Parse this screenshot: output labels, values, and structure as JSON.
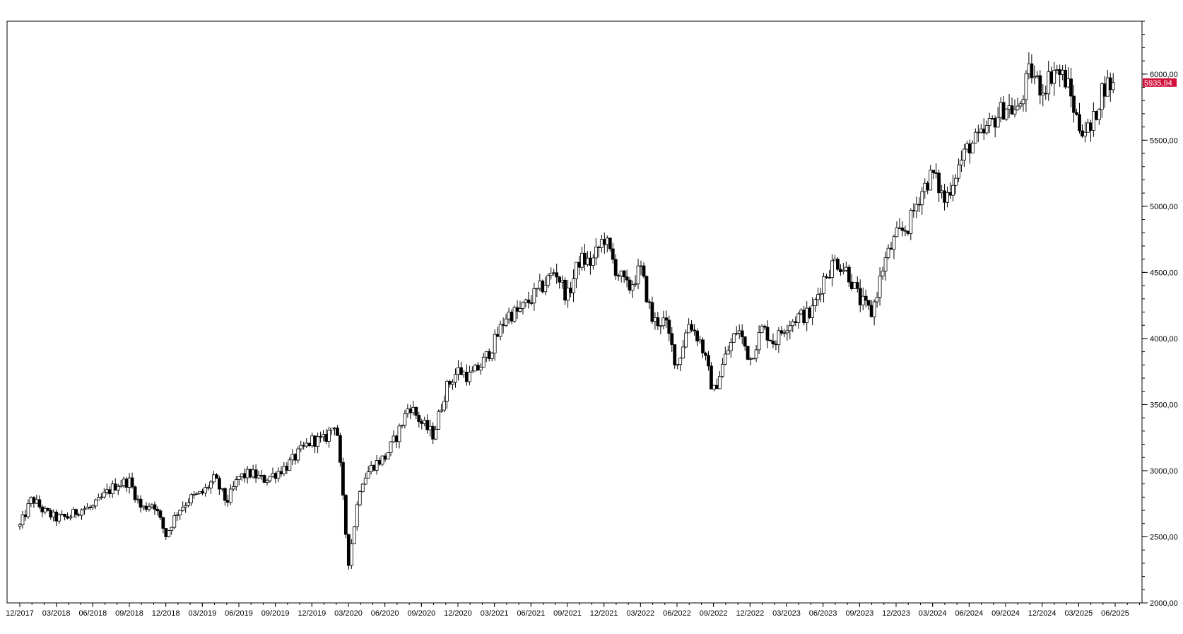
{
  "chart_data": {
    "type": "candlestick",
    "title": "",
    "xlabel": "",
    "ylabel": "",
    "ylim": [
      2000,
      6400
    ],
    "y_ticks": [
      "2000,00",
      "2500,00",
      "3000,00",
      "3500,00",
      "4000,00",
      "4500,00",
      "5000,00",
      "5500,00",
      "6000,00"
    ],
    "x_ticks": [
      "12/2017",
      "03/2018",
      "06/2018",
      "09/2018",
      "12/2018",
      "03/2019",
      "06/2019",
      "09/2019",
      "12/2019",
      "03/2020",
      "06/2020",
      "09/2020",
      "12/2020",
      "03/2021",
      "06/2021",
      "09/2021",
      "12/2021",
      "03/2022",
      "06/2022",
      "09/2022",
      "12/2022",
      "03/2023",
      "06/2023",
      "09/2023",
      "12/2023",
      "03/2024",
      "06/2024",
      "09/2024",
      "12/2024",
      "03/2025",
      "06/2025"
    ],
    "last_price": 5935.94,
    "last_price_label": "5935,94",
    "colors": {
      "up": "#ffffff",
      "down": "#000000",
      "outline": "#000000",
      "last_price_badge": "#d0103a"
    },
    "grid": false,
    "series": [
      {
        "name": "",
        "approx_close_path": [
          [
            "12/2017",
            2580
          ],
          [
            "01/2018",
            2790
          ],
          [
            "02/2018",
            2690
          ],
          [
            "03/2018",
            2640
          ],
          [
            "04/2018",
            2650
          ],
          [
            "05/2018",
            2710
          ],
          [
            "06/2018",
            2720
          ],
          [
            "07/2018",
            2820
          ],
          [
            "08/2018",
            2900
          ],
          [
            "09/2018",
            2920
          ],
          [
            "10/2018",
            2710
          ],
          [
            "11/2018",
            2760
          ],
          [
            "12/2018",
            2510
          ],
          [
            "01/2019",
            2700
          ],
          [
            "02/2019",
            2790
          ],
          [
            "03/2019",
            2830
          ],
          [
            "04/2019",
            2940
          ],
          [
            "05/2019",
            2760
          ],
          [
            "06/2019",
            2950
          ],
          [
            "07/2019",
            2980
          ],
          [
            "08/2019",
            2930
          ],
          [
            "09/2019",
            2980
          ],
          [
            "10/2019",
            3040
          ],
          [
            "11/2019",
            3140
          ],
          [
            "12/2019",
            3230
          ],
          [
            "01/2020",
            3230
          ],
          [
            "02/2020",
            3380
          ],
          [
            "03/2020",
            2300
          ],
          [
            "04/2020",
            2910
          ],
          [
            "05/2020",
            3040
          ],
          [
            "06/2020",
            3100
          ],
          [
            "07/2020",
            3270
          ],
          [
            "08/2020",
            3500
          ],
          [
            "09/2020",
            3360
          ],
          [
            "10/2020",
            3270
          ],
          [
            "11/2020",
            3620
          ],
          [
            "12/2020",
            3760
          ],
          [
            "01/2021",
            3710
          ],
          [
            "02/2021",
            3810
          ],
          [
            "03/2021",
            3970
          ],
          [
            "04/2021",
            4180
          ],
          [
            "05/2021",
            4200
          ],
          [
            "06/2021",
            4300
          ],
          [
            "07/2021",
            4400
          ],
          [
            "08/2021",
            4520
          ],
          [
            "09/2021",
            4310
          ],
          [
            "10/2021",
            4600
          ],
          [
            "11/2021",
            4570
          ],
          [
            "12/2021",
            4770
          ],
          [
            "01/2022",
            4520
          ],
          [
            "02/2022",
            4370
          ],
          [
            "03/2022",
            4530
          ],
          [
            "04/2022",
            4130
          ],
          [
            "05/2022",
            4130
          ],
          [
            "06/2022",
            3790
          ],
          [
            "07/2022",
            4130
          ],
          [
            "08/2022",
            3960
          ],
          [
            "09/2022",
            3590
          ],
          [
            "10/2022",
            3870
          ],
          [
            "11/2022",
            4080
          ],
          [
            "12/2022",
            3840
          ],
          [
            "01/2023",
            4080
          ],
          [
            "02/2023",
            3970
          ],
          [
            "03/2023",
            4110
          ],
          [
            "04/2023",
            4170
          ],
          [
            "05/2023",
            4180
          ],
          [
            "06/2023",
            4450
          ],
          [
            "07/2023",
            4590
          ],
          [
            "08/2023",
            4510
          ],
          [
            "09/2023",
            4290
          ],
          [
            "10/2023",
            4190
          ],
          [
            "11/2023",
            4570
          ],
          [
            "12/2023",
            4770
          ],
          [
            "01/2024",
            4850
          ],
          [
            "02/2024",
            5100
          ],
          [
            "03/2024",
            5250
          ],
          [
            "04/2024",
            5040
          ],
          [
            "05/2024",
            5280
          ],
          [
            "06/2024",
            5460
          ],
          [
            "07/2024",
            5520
          ],
          [
            "08/2024",
            5650
          ],
          [
            "09/2024",
            5760
          ],
          [
            "10/2024",
            5710
          ],
          [
            "11/2024",
            6030
          ],
          [
            "12/2024",
            5880
          ],
          [
            "01/2025",
            6040
          ],
          [
            "02/2025",
            5950
          ],
          [
            "03/2025",
            5610
          ],
          [
            "04/2025",
            5570
          ],
          [
            "05/2025",
            5910
          ],
          [
            "06/2025",
            5936
          ]
        ]
      }
    ]
  }
}
